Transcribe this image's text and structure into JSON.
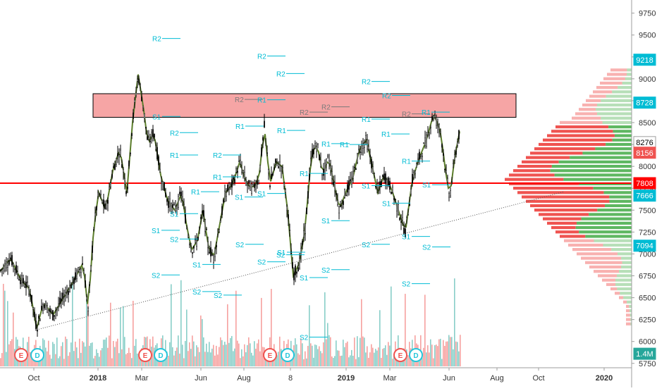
{
  "chart_data": {
    "type": "candlestick",
    "price_axis": {
      "ylim": [
        5700,
        9900
      ],
      "ticks": [
        9750,
        9500,
        9250,
        9000,
        8750,
        8500,
        8250,
        8000,
        7750,
        7500,
        7250,
        7000,
        6750,
        6500,
        6250,
        6000,
        5750
      ]
    },
    "price_tags": [
      {
        "label": "9218",
        "value": 9218,
        "color": "#00bcd4"
      },
      {
        "label": "8728",
        "value": 8728,
        "color": "#00bcd4"
      },
      {
        "label": "8276",
        "value": 8276,
        "color": "#ffffff"
      },
      {
        "label": "8156",
        "value": 8156,
        "color": "#ef5350"
      },
      {
        "label": "7808",
        "value": 7808,
        "color": "#ff0000"
      },
      {
        "label": "7666",
        "value": 7666,
        "color": "#00bcd4"
      },
      {
        "label": "7094",
        "value": 7094,
        "color": "#00bcd4"
      },
      {
        "label": "1.4M",
        "value": 5860,
        "color": "#26a69a"
      }
    ],
    "x_labels": [
      {
        "text": "Oct",
        "x": 48,
        "bold": false
      },
      {
        "text": "2018",
        "x": 139,
        "bold": true
      },
      {
        "text": "Mar",
        "x": 201,
        "bold": false
      },
      {
        "text": "Jun",
        "x": 285,
        "bold": false
      },
      {
        "text": "Aug",
        "x": 346,
        "bold": false
      },
      {
        "text": "8",
        "x": 412,
        "bold": false
      },
      {
        "text": "2019",
        "x": 491,
        "bold": true
      },
      {
        "text": "Mar",
        "x": 553,
        "bold": false
      },
      {
        "text": "Jun",
        "x": 637,
        "bold": false
      },
      {
        "text": "Aug",
        "x": 705,
        "bold": false
      },
      {
        "text": "Oct",
        "x": 764,
        "bold": false
      },
      {
        "text": "2020",
        "x": 857,
        "bold": true
      }
    ],
    "resistance_zone": {
      "low": 8560,
      "high": 8830,
      "color": "#f6a5a5"
    },
    "horizontal_line": {
      "value": 7808,
      "color": "#ff0000"
    },
    "trendline": {
      "from": {
        "t": 55,
        "p": 6140
      },
      "to": {
        "t": 800,
        "p": 7710
      }
    },
    "pivots": [
      {
        "label": "R2",
        "value": 9460
      },
      {
        "label": "R2",
        "value": 9260
      },
      {
        "label": "R2",
        "value": 9060
      },
      {
        "label": "R2",
        "value": 8970
      },
      {
        "label": "R2",
        "value": 8810
      },
      {
        "label": "R2",
        "value": 8765
      },
      {
        "label": "R2",
        "value": 8680
      },
      {
        "label": "R2",
        "value": 8620
      },
      {
        "label": "R2",
        "value": 8600
      },
      {
        "label": "R2",
        "value": 8385
      },
      {
        "label": "R2",
        "value": 8130
      },
      {
        "label": "R1",
        "value": 8760
      },
      {
        "label": "R1",
        "value": 8620
      },
      {
        "label": "R1",
        "value": 8540
      },
      {
        "label": "R1",
        "value": 8460
      },
      {
        "label": "R1",
        "value": 8410
      },
      {
        "label": "R1",
        "value": 8370
      },
      {
        "label": "R1",
        "value": 8260
      },
      {
        "label": "R1",
        "value": 8250
      },
      {
        "label": "R1",
        "value": 8130
      },
      {
        "label": "R1",
        "value": 8060
      },
      {
        "label": "R1",
        "value": 7920
      },
      {
        "label": "R1",
        "value": 7880
      },
      {
        "label": "R1",
        "value": 7710
      },
      {
        "label": "S1",
        "value": 8570
      },
      {
        "label": "S1",
        "value": 7650
      },
      {
        "label": "S1",
        "value": 7690
      },
      {
        "label": "S1",
        "value": 7580
      },
      {
        "label": "S1",
        "value": 7460
      },
      {
        "label": "S1",
        "value": 7270
      },
      {
        "label": "S1",
        "value": 7020
      },
      {
        "label": "S1",
        "value": 6880
      },
      {
        "label": "S1",
        "value": 6730
      },
      {
        "label": "S1",
        "value": 7780
      },
      {
        "label": "S1",
        "value": 7790
      },
      {
        "label": "S1",
        "value": 7380
      },
      {
        "label": "S1",
        "value": 7200
      },
      {
        "label": "S2",
        "value": 7170
      },
      {
        "label": "S2",
        "value": 7110
      },
      {
        "label": "S2",
        "value": 6910
      },
      {
        "label": "S2",
        "value": 6760
      },
      {
        "label": "S2",
        "value": 6990
      },
      {
        "label": "S2",
        "value": 6820
      },
      {
        "label": "S2",
        "value": 6570
      },
      {
        "label": "S2",
        "value": 6530
      },
      {
        "label": "S2",
        "value": 6050
      },
      {
        "label": "S2",
        "value": 7110
      },
      {
        "label": "S2",
        "value": 7080
      },
      {
        "label": "S2",
        "value": 6660
      }
    ],
    "event_markers": [
      {
        "label": "E",
        "kind": "earnings"
      },
      {
        "label": "D",
        "kind": "dividend"
      },
      {
        "label": "E",
        "kind": "earnings"
      },
      {
        "label": "D",
        "kind": "dividend"
      },
      {
        "label": "E",
        "kind": "earnings"
      },
      {
        "label": "D",
        "kind": "dividend"
      },
      {
        "label": "E",
        "kind": "earnings"
      },
      {
        "label": "D",
        "kind": "dividend"
      }
    ],
    "volume_profile_note": "horizontal volume-by-price histogram on right side",
    "grid": false,
    "colors": {
      "up": "#26a69a",
      "down": "#ef5350",
      "candle": "#000000",
      "pivot_label": "#00bcd4",
      "pivot_label_red": "#ef5350",
      "pivot_label_gray": "#7a7a7a",
      "zone_border": "#000000",
      "trend_line": "#555555"
    }
  }
}
